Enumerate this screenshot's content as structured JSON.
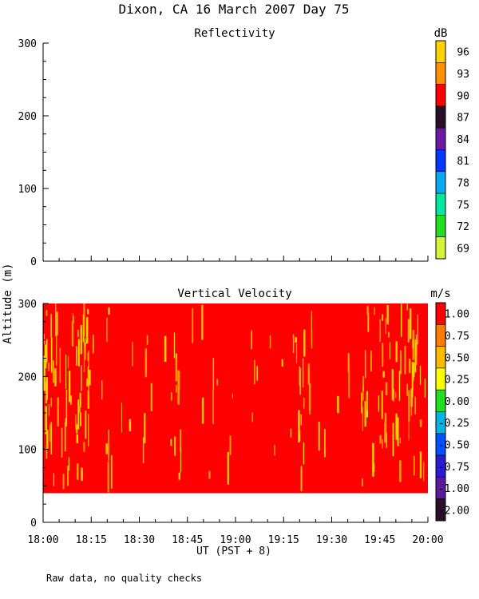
{
  "figure": {
    "title": "Dixon, CA 16 March 2007  Day  75",
    "shared_ylabel": "Altitude (m)",
    "xlabel": "UT  (PST + 8)",
    "footnote": "Raw data, no quality checks"
  },
  "colors": {
    "main_red": "#ff0000",
    "streak_yellow": "#ffd000",
    "streak_orange": "#ff9a00"
  },
  "chart_data": [
    {
      "type": "heatmap",
      "title": "Reflectivity",
      "ylim": [
        0,
        300
      ],
      "yticks": [
        0,
        100,
        200,
        300
      ],
      "xlim": [
        "18:00",
        "20:00"
      ],
      "xticks": [],
      "colorbar": {
        "unit": "dB",
        "labels": [
          "96",
          "93",
          "90",
          "87",
          "84",
          "81",
          "78",
          "75",
          "72",
          "69"
        ],
        "colors": [
          "#ffd200",
          "#ff9000",
          "#ff0000",
          "#2a0f2a",
          "#6a1aa0",
          "#0038ff",
          "#0aaaf0",
          "#00e8a0",
          "#22dd22",
          "#d6f53a"
        ]
      },
      "data_present": false
    },
    {
      "type": "heatmap",
      "title": "Vertical Velocity",
      "ylim": [
        0,
        300
      ],
      "yticks": [
        0,
        100,
        200,
        300
      ],
      "xlim": [
        "18:00",
        "20:00"
      ],
      "xticks": [
        "18:00",
        "18:15",
        "18:30",
        "18:45",
        "19:00",
        "19:15",
        "19:30",
        "19:45",
        "20:00"
      ],
      "data_altitude_range": [
        40,
        300
      ],
      "dominant_value": 1.2,
      "colorbar": {
        "unit": "m/s",
        "labels": [
          "1.00",
          "0.75",
          "0.50",
          "0.25",
          "0.00",
          "-0.25",
          "-0.50",
          "-0.75",
          "-1.00",
          "-2.00"
        ],
        "colors": [
          "#ff0000",
          "#ff7a00",
          "#ffbb00",
          "#ffff00",
          "#22dd22",
          "#00b4e6",
          "#0050ff",
          "#2a1ad0",
          "#5a1a9a",
          "#2a0f2a"
        ]
      }
    }
  ]
}
